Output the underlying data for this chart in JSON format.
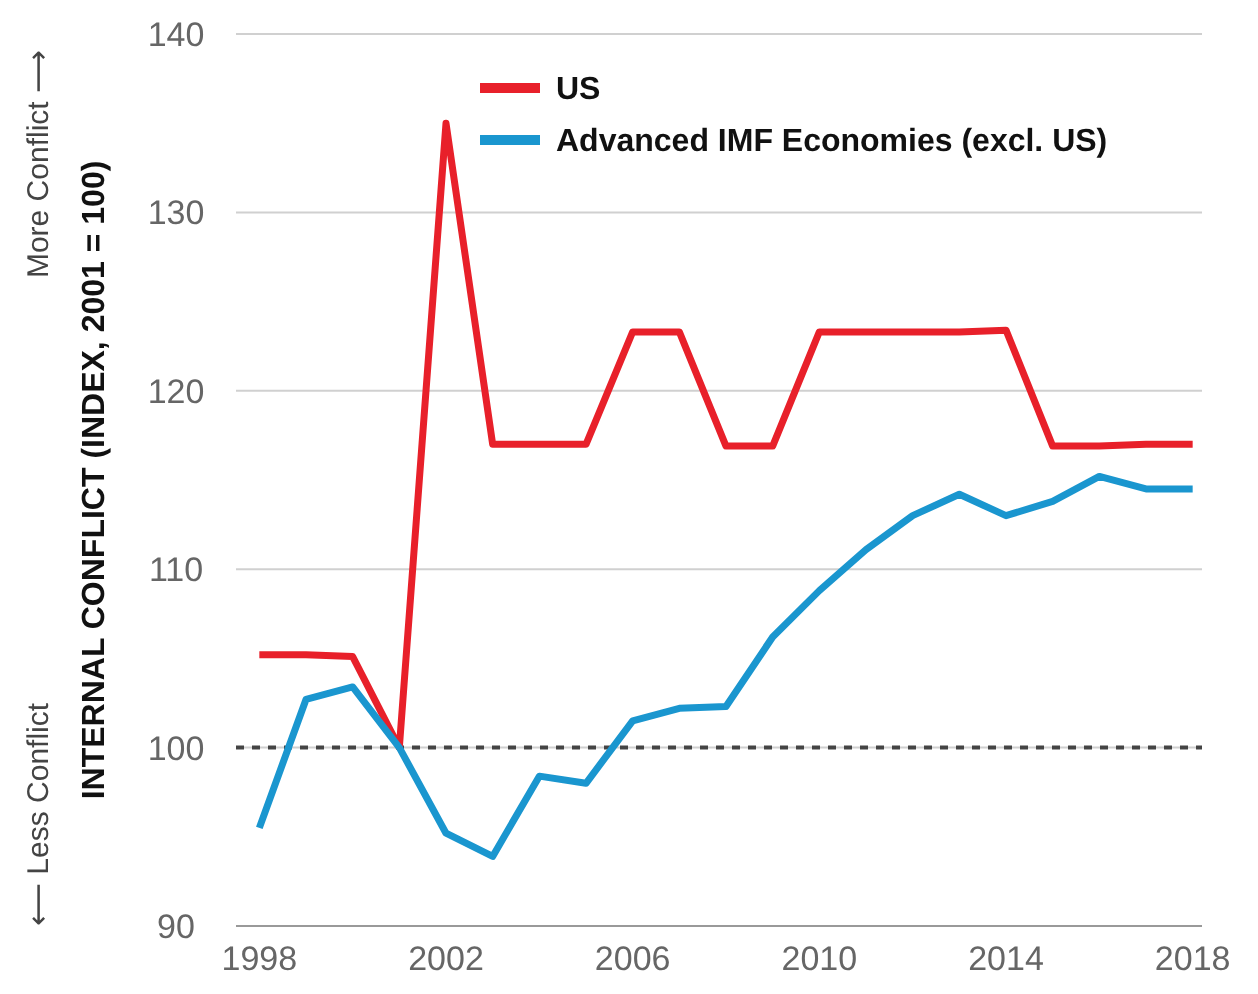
{
  "chart_data": {
    "type": "line",
    "ylabel": "INTERNAL CONFLICT (INDEX, 2001 = 100)",
    "annotations": [
      "More Conflict ⟶",
      "⟵ Less Conflict"
    ],
    "x": [
      1998,
      1999,
      2000,
      2001,
      2002,
      2003,
      2004,
      2005,
      2006,
      2007,
      2008,
      2009,
      2010,
      2011,
      2012,
      2013,
      2014,
      2015,
      2016,
      2017,
      2018
    ],
    "series": [
      {
        "name": "US",
        "color": "#e8202a",
        "values": [
          105.2,
          105.2,
          105.1,
          100,
          135,
          117,
          117,
          117,
          123.3,
          123.3,
          116.9,
          116.9,
          123.3,
          123.3,
          123.3,
          123.3,
          123.4,
          116.9,
          116.9,
          117,
          117
        ]
      },
      {
        "name": "Advanced IMF Economies (excl. US)",
        "color": "#1a96cf",
        "values": [
          95.5,
          102.7,
          103.4,
          100,
          95.2,
          93.9,
          98.4,
          98,
          101.5,
          102.2,
          102.3,
          106.2,
          108.8,
          111.1,
          113,
          114.2,
          113,
          113.8,
          115.2,
          114.5,
          114.5
        ]
      }
    ],
    "xlim": [
      1997.5,
      2018.2
    ],
    "xticks": [
      1998,
      2002,
      2006,
      2010,
      2014,
      2018
    ],
    "ylim": [
      90,
      140
    ],
    "yticks": [
      90,
      100,
      110,
      120,
      130,
      140
    ],
    "grid": "y",
    "legend": "top right",
    "marker": "none",
    "line_style": "solid",
    "ref_lines": [
      {
        "axis": "y",
        "value": 100,
        "color": "#444444",
        "line_style": "dashed"
      }
    ]
  }
}
